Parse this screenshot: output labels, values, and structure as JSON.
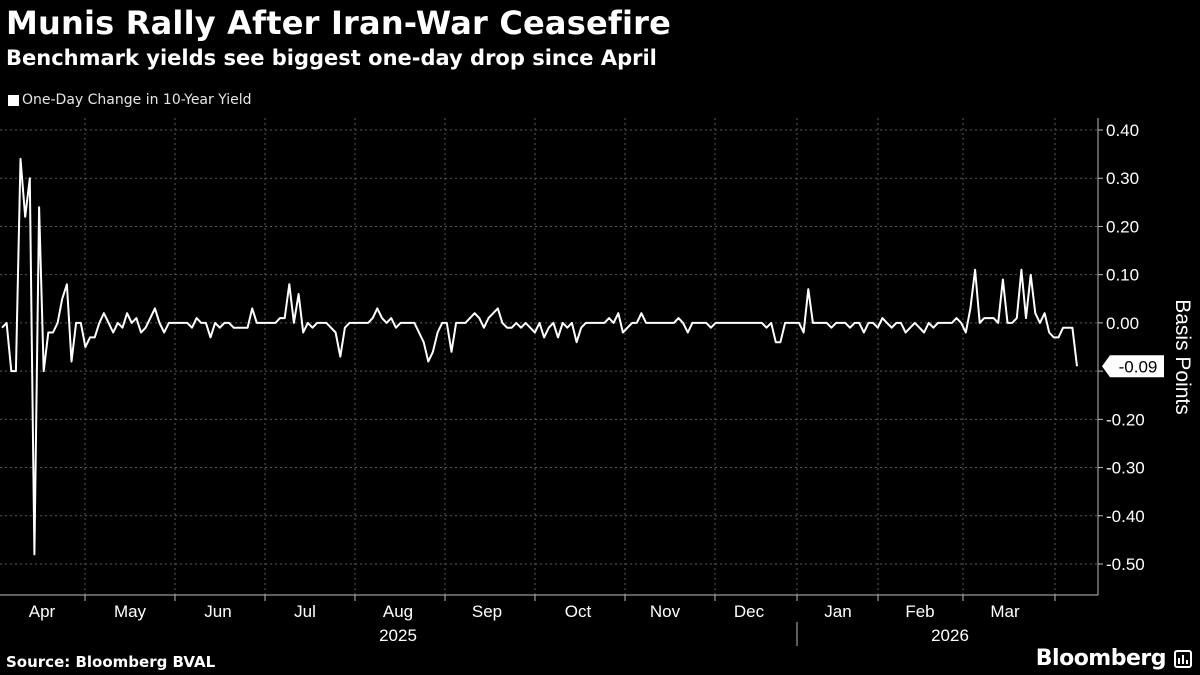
{
  "title": "Munis Rally After Iran-War Ceasefire",
  "subtitle": "Benchmark yields see biggest one-day drop since April",
  "legend_label": "One-Day Change in 10-Year Yield",
  "source": "Source: Bloomberg BVAL",
  "brand": "Bloomberg",
  "colors": {
    "background": "#000000",
    "line": "#ffffff",
    "grid": "#5a5a5a"
  },
  "chart_data": {
    "type": "line",
    "title": "Munis Rally After Iran-War Ceasefire",
    "subtitle": "Benchmark yields see biggest one-day drop since April",
    "ylabel": "Basis Points",
    "ylim": [
      -0.54,
      0.42
    ],
    "y_ticks": [
      0.4,
      0.3,
      0.2,
      0.1,
      0.0,
      -0.1,
      -0.2,
      -0.3,
      -0.4,
      -0.5
    ],
    "y_tick_labels": [
      "0.40",
      "0.30",
      "0.20",
      "0.10",
      "0.00",
      "",
      "-0.20",
      "-0.30",
      "-0.40",
      "-0.50"
    ],
    "last_value": -0.09,
    "last_value_label": "-0.09",
    "months": [
      "Apr",
      "May",
      "Jun",
      "Jul",
      "Aug",
      "Sep",
      "Oct",
      "Nov",
      "Dec",
      "Jan",
      "Feb",
      "Mar"
    ],
    "years": [
      "2025",
      "2026"
    ],
    "series": [
      {
        "name": "One-Day Change in 10-Year Yield",
        "values": [
          -0.01,
          0.0,
          -0.1,
          -0.1,
          0.34,
          0.22,
          0.3,
          -0.48,
          0.24,
          -0.1,
          -0.02,
          -0.02,
          0.0,
          0.05,
          0.08,
          -0.08,
          0.0,
          0.0,
          -0.05,
          -0.03,
          -0.03,
          0.0,
          0.02,
          0.0,
          -0.02,
          0.0,
          -0.01,
          0.02,
          0.0,
          0.01,
          -0.02,
          -0.01,
          0.01,
          0.03,
          0.0,
          -0.02,
          0.0,
          0.0,
          0.0,
          0.0,
          0.0,
          -0.01,
          0.01,
          0.0,
          0.0,
          -0.03,
          0.0,
          -0.01,
          0.0,
          0.0,
          -0.01,
          -0.01,
          -0.01,
          -0.01,
          0.03,
          0.0,
          0.0,
          0.0,
          0.0,
          0.0,
          0.01,
          0.01,
          0.08,
          0.0,
          0.06,
          -0.02,
          0.0,
          -0.01,
          0.0,
          0.0,
          0.0,
          -0.01,
          -0.02,
          -0.07,
          -0.01,
          0.0,
          0.0,
          0.0,
          0.0,
          0.0,
          0.01,
          0.03,
          0.01,
          0.0,
          0.01,
          -0.01,
          0.0,
          0.0,
          0.0,
          0.0,
          -0.02,
          -0.04,
          -0.08,
          -0.06,
          -0.02,
          0.0,
          0.0,
          -0.06,
          0.0,
          0.0,
          0.0,
          0.01,
          0.02,
          0.01,
          -0.01,
          0.01,
          0.02,
          0.03,
          0.0,
          -0.01,
          -0.01,
          0.0,
          -0.01,
          0.0,
          -0.01,
          -0.02,
          0.0,
          -0.03,
          -0.01,
          0.0,
          -0.03,
          0.0,
          -0.01,
          0.0,
          -0.04,
          -0.01,
          0.0,
          0.0,
          0.0,
          0.0,
          0.0,
          0.01,
          0.0,
          0.02,
          -0.02,
          -0.01,
          0.0,
          0.0,
          0.02,
          0.0,
          0.0,
          0.0,
          0.0,
          0.0,
          0.0,
          0.0,
          0.01,
          0.0,
          -0.02,
          0.0,
          0.0,
          0.0,
          0.0,
          -0.01,
          0.0,
          0.0,
          0.0,
          0.0,
          0.0,
          0.0,
          0.0,
          0.0,
          0.0,
          0.0,
          0.0,
          -0.01,
          0.0,
          -0.04,
          -0.04,
          0.0,
          0.0,
          0.0,
          0.0,
          -0.02,
          0.07,
          0.0,
          0.0,
          0.0,
          0.0,
          -0.01,
          0.0,
          0.0,
          0.0,
          -0.01,
          0.0,
          0.0,
          -0.02,
          0.0,
          0.0,
          -0.01,
          0.01,
          0.0,
          -0.01,
          0.0,
          0.0,
          -0.02,
          -0.01,
          0.0,
          -0.01,
          -0.02,
          0.0,
          -0.01,
          0.0,
          0.0,
          0.0,
          0.0,
          0.01,
          0.0,
          -0.02,
          0.03,
          0.11,
          0.0,
          0.01,
          0.01,
          0.01,
          0.0,
          0.09,
          0.0,
          0.0,
          0.01,
          0.11,
          0.01,
          0.1,
          0.02,
          0.0,
          0.02,
          -0.02,
          -0.03,
          -0.03,
          -0.01,
          -0.01,
          -0.01,
          -0.09
        ]
      }
    ]
  }
}
